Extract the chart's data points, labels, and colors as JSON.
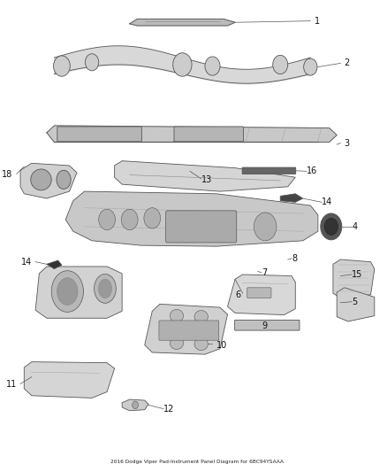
{
  "title": "2016 Dodge Viper Pad-Instrument Panel Diagram for 6BC94YSAAA",
  "background_color": "#ffffff",
  "fig_width": 4.38,
  "fig_height": 5.33,
  "dpi": 100
}
